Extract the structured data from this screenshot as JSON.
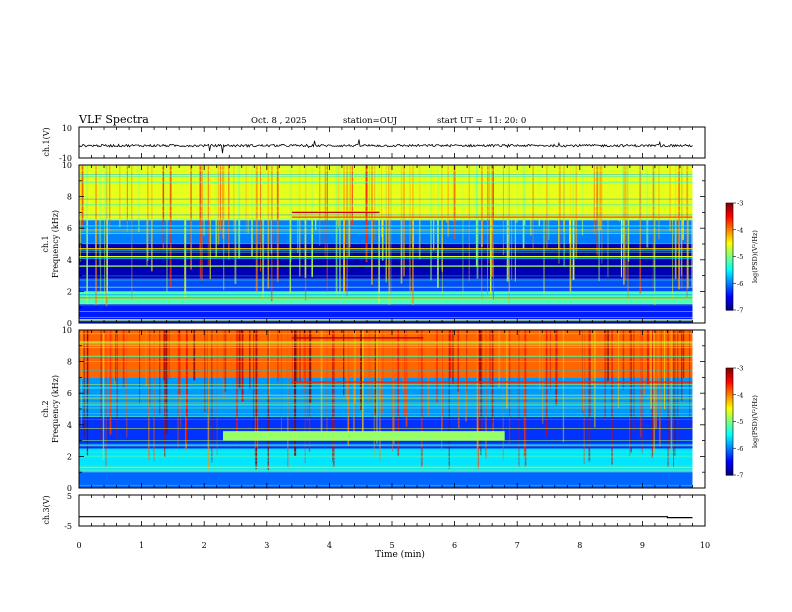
{
  "header": {
    "title": "VLF Spectra",
    "date": "Oct. 8 , 2025",
    "station": "station=OUJ",
    "start_ut": "start UT =  11: 20: 0"
  },
  "colors": {
    "frame": "#000000",
    "background": "#ffffff",
    "colormap": [
      "#00007f",
      "#0000ff",
      "#0080ff",
      "#00ffff",
      "#80ff80",
      "#ffff00",
      "#ff8000",
      "#ff0000",
      "#7f0000",
      "#ffffff"
    ]
  },
  "chart_data": [
    {
      "name": "ch1-waveform",
      "type": "line",
      "ylabel": "ch.1(V)",
      "ylim": [
        -10,
        10
      ],
      "y_tick_labels": [
        "10",
        "-10"
      ],
      "xlim": [
        0,
        10
      ],
      "trace_level": -2,
      "data_end_min": 9.8
    },
    {
      "name": "ch1-spectrogram",
      "type": "heatmap",
      "ylabel": "ch.1 Frequency (kHz)",
      "ylabel_line1": "ch.1",
      "ylabel_line2": "Frequency (kHz)",
      "ylim": [
        0,
        10
      ],
      "y_tick_labels": [
        "0",
        "2",
        "4",
        "6",
        "8",
        "10"
      ],
      "xlim": [
        0,
        10
      ],
      "data_end_min": 9.8,
      "colorbar": {
        "label": "log(PSD)(V²/Hz)",
        "range": [
          -7,
          -3
        ],
        "tick_labels": [
          "-3",
          "-4",
          "-5",
          "-6",
          "-7"
        ]
      },
      "bands": [
        {
          "f_from": 6.5,
          "f_to": 10,
          "level": -4.6
        },
        {
          "f_from": 5.0,
          "f_to": 6.5,
          "level": -6.0
        },
        {
          "f_from": 2.8,
          "f_to": 5.0,
          "level": -6.8
        },
        {
          "f_from": 2.0,
          "f_to": 2.8,
          "level": -6.2
        },
        {
          "f_from": 1.2,
          "f_to": 2.0,
          "level": -5.2
        },
        {
          "f_from": 0.0,
          "f_to": 1.2,
          "level": -6.4
        }
      ],
      "tones": [
        {
          "f": 7.0,
          "t_from": 3.4,
          "t_to": 4.8,
          "level": -3.3
        },
        {
          "f": 6.7,
          "t_from": 3.4,
          "t_to": 9.8,
          "level": -3.8
        },
        {
          "f": 4.7,
          "t_from": 0.0,
          "t_to": 9.8,
          "level": -4.3
        },
        {
          "f": 4.2,
          "t_from": 0.0,
          "t_to": 9.8,
          "level": -4.6
        },
        {
          "f": 3.6,
          "t_from": 0.0,
          "t_to": 9.8,
          "level": -4.9
        },
        {
          "f": 1.6,
          "t_from": 0.0,
          "t_to": 9.8,
          "level": -4.0
        },
        {
          "f": 0.2,
          "t_from": 0.0,
          "t_to": 9.8,
          "level": -4.5
        }
      ]
    },
    {
      "name": "ch2-spectrogram",
      "type": "heatmap",
      "ylabel": "ch.2 Frequency (kHz)",
      "ylabel_line1": "ch.2",
      "ylabel_line2": "Frequency (kHz)",
      "ylim": [
        0,
        10
      ],
      "y_tick_labels": [
        "0",
        "2",
        "4",
        "6",
        "8",
        "10"
      ],
      "xlim": [
        0,
        10
      ],
      "data_end_min": 9.8,
      "colorbar": {
        "label": "log(PSD)(V²/Hz)",
        "range": [
          -7,
          -3
        ],
        "tick_labels": [
          "-3",
          "-4",
          "-5",
          "-6",
          "-7"
        ]
      },
      "bands": [
        {
          "f_from": 7.0,
          "f_to": 10,
          "level": -3.9
        },
        {
          "f_from": 4.5,
          "f_to": 7.0,
          "level": -5.9
        },
        {
          "f_from": 2.5,
          "f_to": 4.5,
          "level": -6.3
        },
        {
          "f_from": 1.0,
          "f_to": 2.5,
          "level": -5.6
        },
        {
          "f_from": 0.0,
          "f_to": 1.0,
          "level": -6.1
        }
      ],
      "tones": [
        {
          "f": 9.5,
          "t_from": 3.4,
          "t_to": 5.5,
          "level": -3.2
        },
        {
          "f": 6.7,
          "t_from": 3.4,
          "t_to": 9.8,
          "level": -3.6
        },
        {
          "f": 3.3,
          "t_from": 2.3,
          "t_to": 6.8,
          "level": -4.9
        },
        {
          "f": 1.3,
          "t_from": 0.0,
          "t_to": 9.8,
          "level": -4.3
        }
      ]
    },
    {
      "name": "ch3-waveform",
      "type": "line",
      "ylabel": "ch.3(V)",
      "ylim": [
        -5,
        5
      ],
      "y_tick_labels": [
        "5",
        "-5"
      ],
      "xlim": [
        0,
        10
      ],
      "trace_level": -2,
      "trace_end_level": -2.3,
      "step_min": 9.4,
      "data_end_min": 9.8
    }
  ],
  "x_axis": {
    "label": "Time (min)",
    "range": [
      0,
      10
    ],
    "tick_labels": [
      "0",
      "1",
      "2",
      "3",
      "4",
      "5",
      "6",
      "7",
      "8",
      "9",
      "10"
    ]
  }
}
